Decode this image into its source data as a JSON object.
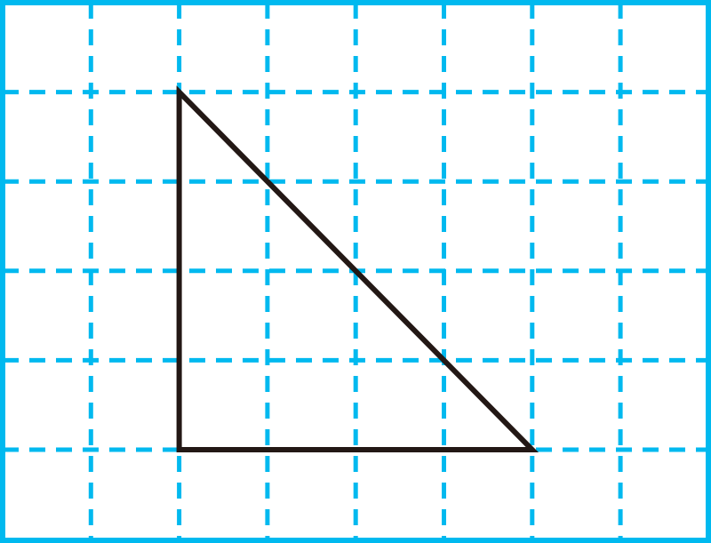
{
  "grid": {
    "columns": 8,
    "rows": 6,
    "line_style": "dashed",
    "color": "#00b9ef"
  },
  "triangle": {
    "vertices": [
      {
        "col": 2,
        "row": 1
      },
      {
        "col": 2,
        "row": 5
      },
      {
        "col": 6,
        "row": 5
      }
    ],
    "stroke_color": "#231815"
  }
}
